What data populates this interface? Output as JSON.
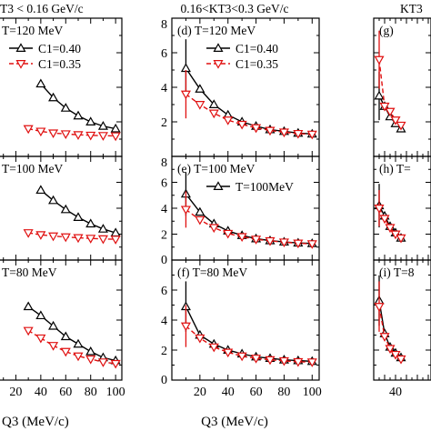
{
  "header": {
    "left": "T3 < 0.16 GeV/c",
    "middle": "0.16<KT3<0.3 GeV/c",
    "right": "KT3"
  },
  "xlabel": "Q3 (MeV/c)",
  "chart_data": [
    {
      "type": "line",
      "panel": "(a)",
      "column": "left",
      "title": "T=120 MeV",
      "legend": [
        "C1=0.40",
        "C1=0.35"
      ],
      "x": [
        10,
        20,
        30,
        40,
        50,
        60,
        70,
        80,
        90,
        100
      ],
      "series": [
        {
          "name": "C1=0.40",
          "color": "#000000",
          "marker": "triangle-up",
          "values": [
            null,
            null,
            null,
            4.2,
            3.4,
            2.8,
            2.35,
            2.0,
            1.75,
            1.6
          ]
        },
        {
          "name": "C1=0.35",
          "color": "#e01010",
          "marker": "triangle-down",
          "values": [
            null,
            null,
            1.6,
            1.45,
            1.35,
            1.3,
            1.25,
            1.22,
            1.2,
            1.18
          ]
        }
      ],
      "xlim": [
        0,
        105
      ],
      "ylim": [
        0,
        8
      ],
      "yticks": [],
      "xticks": []
    },
    {
      "type": "line",
      "panel": "(b)",
      "column": "left",
      "title": "T=100 MeV",
      "x": [
        10,
        20,
        30,
        40,
        50,
        60,
        70,
        80,
        90,
        100
      ],
      "series": [
        {
          "name": "C1=0.40",
          "color": "#000000",
          "marker": "triangle-up",
          "values": [
            null,
            null,
            null,
            5.4,
            4.6,
            3.9,
            3.3,
            2.8,
            2.4,
            2.1
          ]
        },
        {
          "name": "C1=0.35",
          "color": "#e01010",
          "marker": "triangle-down",
          "values": [
            null,
            null,
            2.1,
            1.95,
            1.85,
            1.78,
            1.72,
            1.67,
            1.63,
            1.6
          ]
        }
      ],
      "xlim": [
        0,
        105
      ],
      "ylim": [
        0,
        8
      ],
      "yticks": [],
      "xticks": []
    },
    {
      "type": "line",
      "panel": "(c)",
      "column": "left",
      "title": "T=80 MeV",
      "x": [
        10,
        20,
        30,
        40,
        50,
        60,
        70,
        80,
        90,
        100
      ],
      "series": [
        {
          "name": "C1=0.40",
          "color": "#000000",
          "marker": "triangle-up",
          "values": [
            null,
            null,
            4.9,
            4.3,
            3.6,
            2.9,
            2.4,
            1.9,
            1.5,
            1.3
          ]
        },
        {
          "name": "C1=0.35",
          "color": "#e01010",
          "marker": "triangle-down",
          "values": [
            null,
            null,
            3.3,
            2.8,
            2.3,
            1.9,
            1.6,
            1.4,
            1.2,
            1.1
          ]
        }
      ],
      "xlim": [
        0,
        105
      ],
      "ylim": [
        0,
        8
      ],
      "yticks": [],
      "xticks": [
        "20",
        "40",
        "60",
        "80",
        "100"
      ]
    },
    {
      "type": "line",
      "panel": "(d)",
      "column": "middle",
      "title": "T=120 MeV",
      "legend": [
        "C1=0.40",
        "C1=0.35"
      ],
      "x": [
        10,
        20,
        30,
        40,
        50,
        60,
        70,
        80,
        90,
        100
      ],
      "series": [
        {
          "name": "C1=0.40",
          "color": "#000000",
          "marker": "triangle-up",
          "values": [
            5.1,
            3.9,
            3.0,
            2.4,
            2.0,
            1.75,
            1.55,
            1.45,
            1.35,
            1.3
          ]
        },
        {
          "name": "C1=0.35",
          "color": "#e01010",
          "marker": "triangle-down",
          "values": [
            3.6,
            3.0,
            2.5,
            2.1,
            1.85,
            1.65,
            1.5,
            1.4,
            1.32,
            1.28
          ]
        }
      ],
      "xlim": [
        0,
        105
      ],
      "ylim": [
        0,
        8
      ],
      "yticks": [
        "2",
        "4",
        "6",
        "8"
      ],
      "xticks": []
    },
    {
      "type": "line",
      "panel": "(e)",
      "column": "middle",
      "title": "T=100 MeV",
      "legend": [
        "T=100MeV"
      ],
      "x": [
        10,
        20,
        30,
        40,
        50,
        60,
        70,
        80,
        90,
        100
      ],
      "series": [
        {
          "name": "T=100MeV",
          "color": "#000000",
          "marker": "triangle-up",
          "values": [
            5.1,
            3.7,
            2.8,
            2.25,
            1.9,
            1.65,
            1.5,
            1.4,
            1.32,
            1.28
          ]
        },
        {
          "name": "",
          "color": "#e01010",
          "marker": "triangle-down",
          "values": [
            3.9,
            3.1,
            2.5,
            2.05,
            1.8,
            1.6,
            1.48,
            1.38,
            1.3,
            1.25
          ]
        }
      ],
      "xlim": [
        0,
        105
      ],
      "ylim": [
        0,
        8
      ],
      "yticks": [
        "0",
        "2",
        "4",
        "6",
        "8"
      ],
      "xticks": []
    },
    {
      "type": "line",
      "panel": "(f)",
      "column": "middle",
      "title": "T=80 MeV",
      "x": [
        10,
        20,
        30,
        40,
        50,
        60,
        70,
        80,
        90,
        100
      ],
      "series": [
        {
          "name": "",
          "color": "#000000",
          "marker": "triangle-up",
          "values": [
            4.9,
            3.0,
            2.4,
            2.0,
            1.75,
            1.55,
            1.45,
            1.35,
            1.3,
            1.25
          ]
        },
        {
          "name": "",
          "color": "#e01010",
          "marker": "triangle-down",
          "values": [
            3.6,
            2.8,
            2.2,
            1.85,
            1.6,
            1.45,
            1.35,
            1.28,
            1.22,
            1.2
          ]
        }
      ],
      "xlim": [
        0,
        105
      ],
      "ylim": [
        0,
        8
      ],
      "yticks": [
        "0",
        "2",
        "4",
        "6"
      ],
      "xticks": [
        "20",
        "40",
        "60",
        "80",
        "100"
      ]
    },
    {
      "type": "line",
      "panel": "(g)",
      "column": "right",
      "title": "",
      "x": [
        10,
        20,
        30,
        40,
        50
      ],
      "series": [
        {
          "name": "",
          "color": "#000000",
          "marker": "triangle-up",
          "values": [
            3.5,
            2.9,
            2.3,
            1.9,
            1.6
          ]
        },
        {
          "name": "",
          "color": "#e01010",
          "marker": "triangle-down",
          "values": [
            5.6,
            2.9,
            2.6,
            2.1,
            1.8
          ]
        }
      ],
      "xlim": [
        0,
        105
      ],
      "ylim": [
        0,
        8
      ],
      "yticks": [],
      "xticks": []
    },
    {
      "type": "line",
      "panel": "(h)",
      "column": "right",
      "title": "T=",
      "x": [
        10,
        20,
        30,
        40,
        50
      ],
      "series": [
        {
          "name": "",
          "color": "#000000",
          "marker": "triangle-up",
          "values": [
            4.2,
            3.4,
            2.6,
            2.1,
            1.7
          ]
        },
        {
          "name": "",
          "color": "#e01010",
          "marker": "triangle-down",
          "values": [
            4.0,
            3.2,
            2.5,
            2.0,
            1.7
          ]
        }
      ],
      "xlim": [
        0,
        105
      ],
      "ylim": [
        0,
        8
      ],
      "yticks": [],
      "xticks": []
    },
    {
      "type": "line",
      "panel": "(i)",
      "column": "right",
      "title": "T=8",
      "x": [
        10,
        20,
        30,
        40,
        50
      ],
      "series": [
        {
          "name": "",
          "color": "#000000",
          "marker": "triangle-up",
          "values": [
            5.3,
            3.1,
            2.2,
            1.8,
            1.5
          ]
        },
        {
          "name": "",
          "color": "#e01010",
          "marker": "triangle-down",
          "values": [
            4.9,
            2.9,
            2.1,
            1.7,
            1.4
          ]
        }
      ],
      "xlim": [
        0,
        105
      ],
      "ylim": [
        0,
        8
      ],
      "yticks": [],
      "xticks": [
        "40"
      ]
    }
  ]
}
